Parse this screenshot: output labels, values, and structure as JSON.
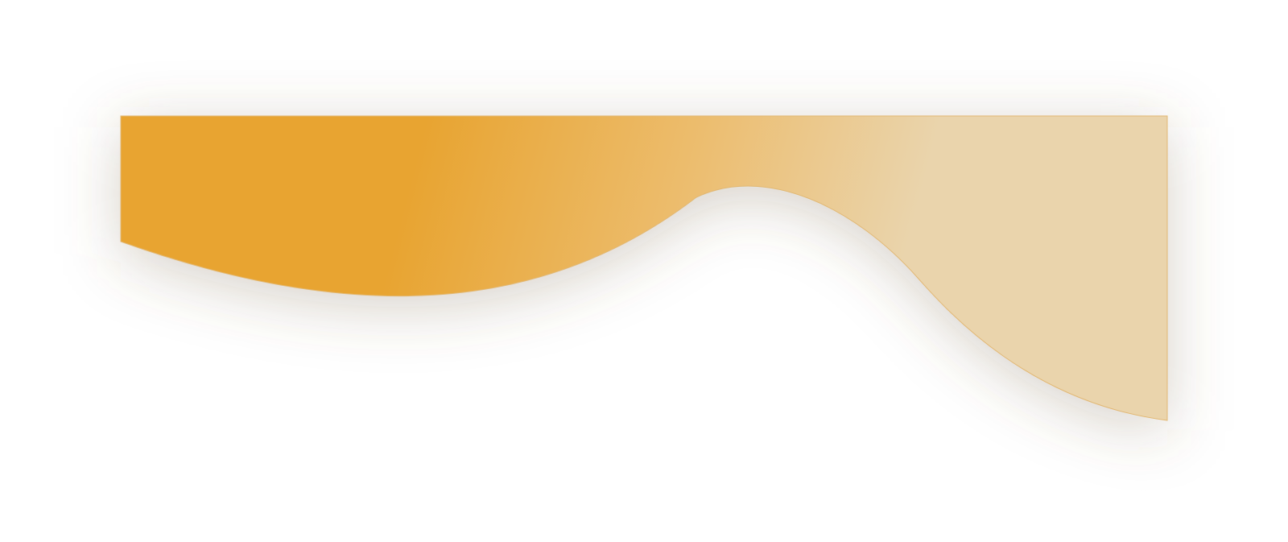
{
  "shape": {
    "fill_start_color": "#e8a431",
    "fill_mid_color": "#ecbc6c",
    "fill_end_color": "#ead4ac",
    "edge_color": "#e2b874",
    "shadow_color": "#6b5838"
  }
}
